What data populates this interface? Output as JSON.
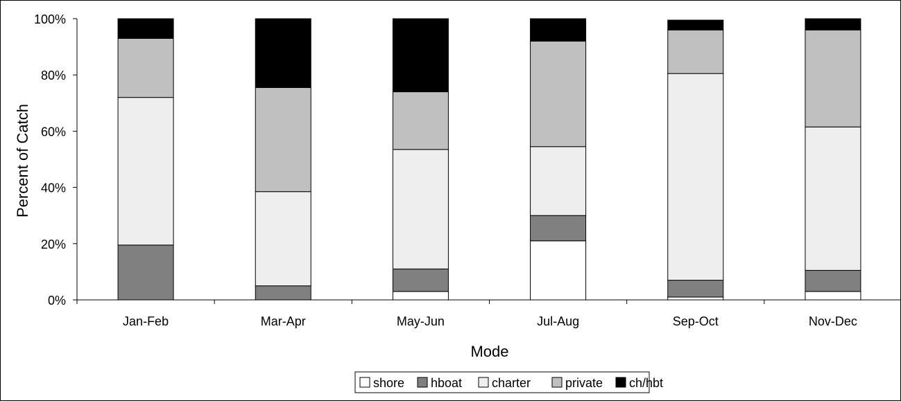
{
  "chart_data": {
    "type": "bar",
    "stacked": true,
    "normalized": true,
    "title": "",
    "xlabel": "Mode",
    "ylabel": "Percent of Catch",
    "ylim": [
      0,
      100
    ],
    "yticks": [
      "0%",
      "20%",
      "40%",
      "60%",
      "80%",
      "100%"
    ],
    "categories": [
      "Jan-Feb",
      "Mar-Apr",
      "May-Jun",
      "Jul-Aug",
      "Sep-Oct",
      "Nov-Dec"
    ],
    "series": [
      {
        "name": "shore",
        "color": "#ffffff",
        "values": [
          0,
          0,
          3,
          21,
          1,
          3
        ]
      },
      {
        "name": "hboat",
        "color": "#808080",
        "values": [
          19.5,
          5,
          8,
          9,
          6,
          7.5
        ]
      },
      {
        "name": "charter",
        "color": "#eeeeee",
        "values": [
          52.5,
          33.5,
          42.5,
          24.5,
          73.5,
          51
        ]
      },
      {
        "name": "private",
        "color": "#c0c0c0",
        "values": [
          21,
          37,
          20.5,
          37.5,
          15.5,
          34.5
        ]
      },
      {
        "name": "ch/hbt",
        "color": "#000000",
        "values": [
          7,
          24.5,
          26,
          8,
          3.5,
          4
        ]
      }
    ],
    "grid": false,
    "legend_position": "bottom"
  }
}
